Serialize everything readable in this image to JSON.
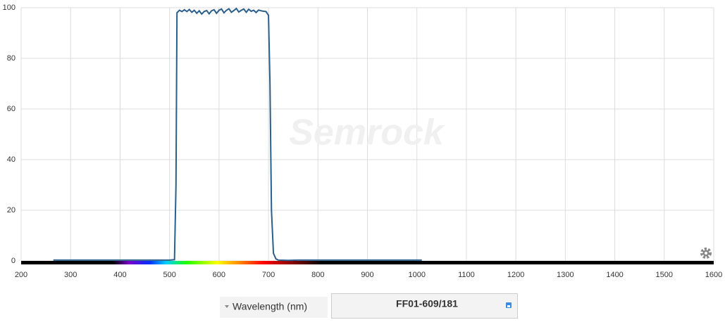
{
  "chart_data": {
    "type": "line",
    "watermark": "Semrock",
    "xlabel": "Wavelength (nm)",
    "x": [
      265,
      300,
      350,
      400,
      450,
      500,
      510,
      513,
      515,
      520,
      525,
      530,
      535,
      540,
      545,
      550,
      555,
      560,
      565,
      570,
      575,
      580,
      585,
      590,
      595,
      600,
      605,
      610,
      615,
      620,
      625,
      630,
      635,
      640,
      645,
      650,
      655,
      660,
      665,
      670,
      675,
      680,
      685,
      690,
      695,
      700,
      703,
      706,
      710,
      715,
      720,
      740,
      760,
      800,
      850,
      900,
      950,
      1000,
      1010
    ],
    "series": [
      {
        "name": "FF01-609/181",
        "color": "#2a5f8c",
        "values": [
          0.3,
          0.3,
          0.3,
          0.3,
          0.3,
          0.3,
          0.5,
          30,
          98,
          99,
          98.5,
          99.2,
          98.5,
          99.3,
          98.2,
          99,
          97.8,
          98.8,
          97.5,
          98.5,
          98.9,
          97.6,
          98.8,
          99.2,
          97.8,
          99,
          99.5,
          98,
          99,
          99.6,
          98.2,
          98.9,
          99.7,
          98.3,
          99,
          99.5,
          98.2,
          99.4,
          98.6,
          99,
          98.1,
          99.1,
          98.8,
          98.6,
          98.5,
          97,
          70,
          20,
          3,
          0.8,
          0.3,
          0.2,
          0.3,
          0.3,
          0.3,
          0.3,
          0.3,
          0.3,
          0.3
        ]
      }
    ],
    "xlim": [
      200,
      1600
    ],
    "xticks": [
      200,
      300,
      400,
      500,
      600,
      700,
      800,
      900,
      1000,
      1100,
      1200,
      1300,
      1400,
      1500,
      1600
    ],
    "ylim": [
      0,
      100
    ],
    "yticks": [
      0,
      20,
      40,
      60,
      80,
      100
    ],
    "grid": true
  }
}
